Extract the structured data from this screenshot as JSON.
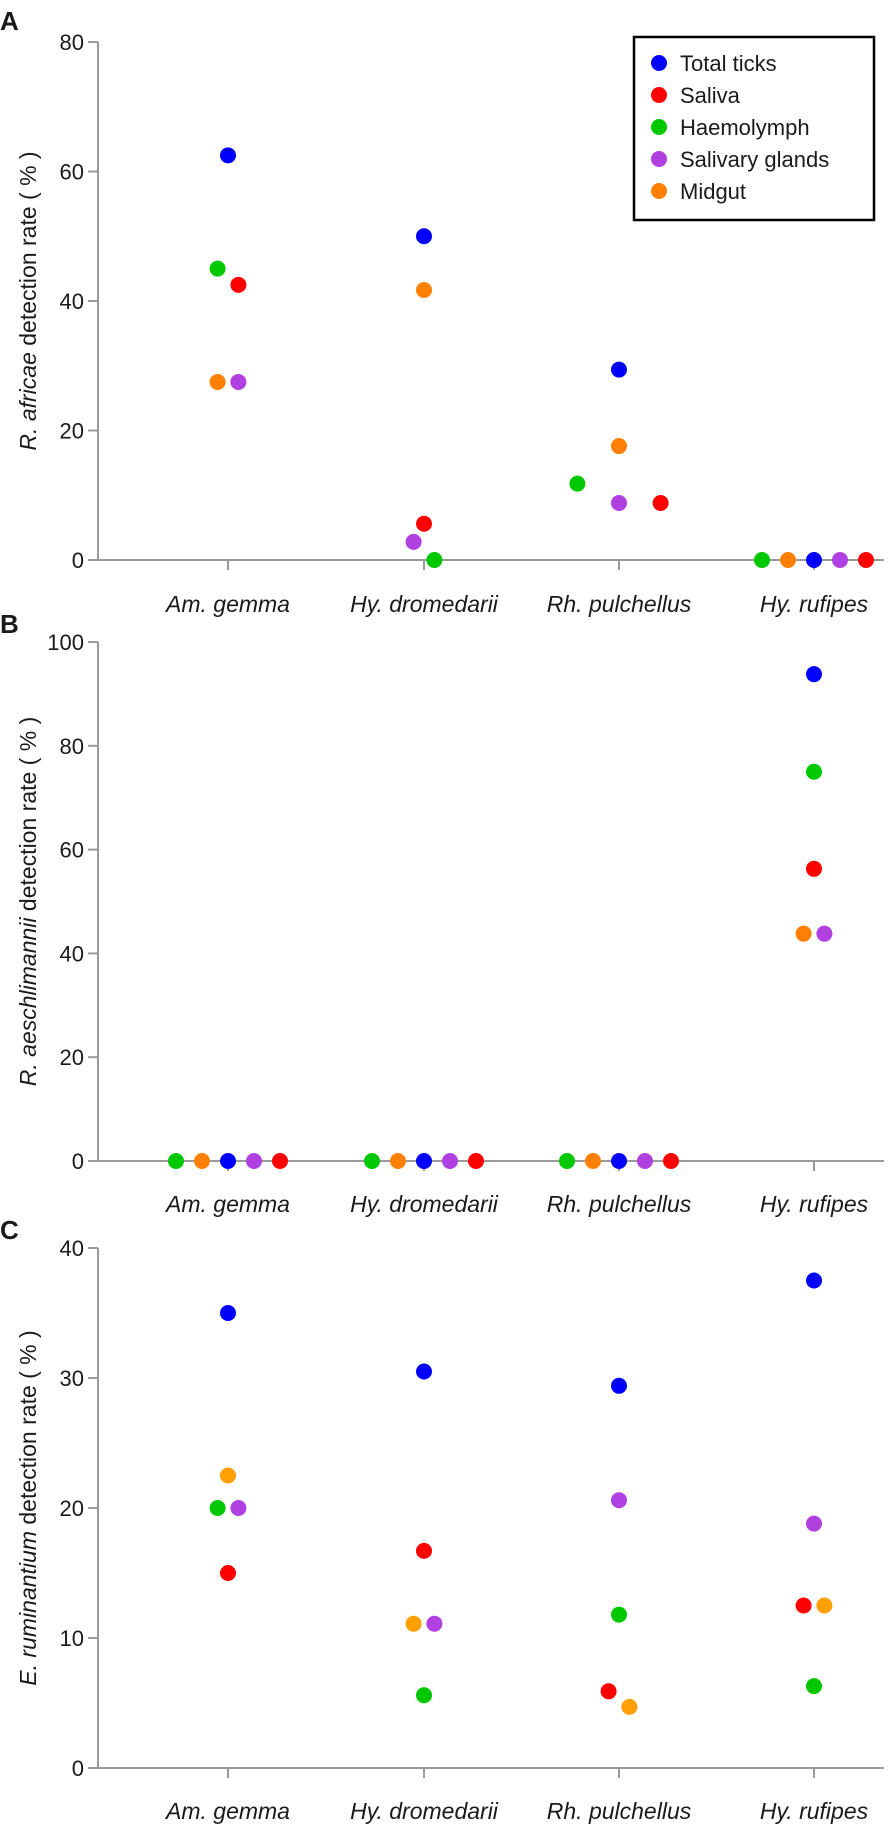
{
  "chart_data": [
    {
      "type": "scatter",
      "panel": "A",
      "ylabel_italic": "R. africae",
      "ylabel_rest": " detection rate ( % )",
      "ylim": [
        0,
        80
      ],
      "yticks": [
        "0",
        "20",
        "40",
        "60",
        "80"
      ],
      "categories": [
        "Am. gemma",
        "Hy. dromedarii",
        "Rh. pulchellus",
        "Hy. rufipes"
      ],
      "legend": {
        "position": "top-right",
        "entries": [
          "Total ticks",
          "Saliva",
          "Haemolymph",
          "Salivary glands",
          "Midgut"
        ]
      },
      "series": [
        {
          "name": "Total ticks",
          "color": "#0000ff",
          "values": [
            62.5,
            50,
            29.4,
            0
          ],
          "offsets": [
            0,
            0,
            0,
            0
          ]
        },
        {
          "name": "Saliva",
          "color": "#ff0000",
          "values": [
            42.5,
            5.6,
            8.8,
            0
          ],
          "offsets": [
            1,
            0,
            4,
            5
          ]
        },
        {
          "name": "Haemolymph",
          "color": "#00c800",
          "values": [
            45,
            0,
            11.8,
            0
          ],
          "offsets": [
            -1,
            1,
            -4,
            -5
          ]
        },
        {
          "name": "Salivary glands",
          "color": "#b040e0",
          "values": [
            27.5,
            2.8,
            8.8,
            0
          ],
          "offsets": [
            1,
            -1,
            0,
            2.5
          ]
        },
        {
          "name": "Midgut",
          "color": "#ff8000",
          "values": [
            27.5,
            41.7,
            17.6,
            0
          ],
          "offsets": [
            -1,
            0,
            0,
            -2.5
          ]
        }
      ]
    },
    {
      "type": "scatter",
      "panel": "B",
      "ylabel_italic": "R. aeschlimannii",
      "ylabel_rest": " detection rate ( % )",
      "ylim": [
        0,
        100
      ],
      "yticks": [
        "0",
        "20",
        "40",
        "60",
        "80",
        "100"
      ],
      "categories": [
        "Am. gemma",
        "Hy. dromedarii",
        "Rh. pulchellus",
        "Hy. rufipes"
      ],
      "series": [
        {
          "name": "Total ticks",
          "color": "#0000ff",
          "values": [
            0,
            0,
            0,
            93.8
          ],
          "offsets": [
            0,
            0,
            0,
            0
          ]
        },
        {
          "name": "Saliva",
          "color": "#ff0000",
          "values": [
            0,
            0,
            0,
            56.3
          ],
          "offsets": [
            5,
            5,
            5,
            0
          ]
        },
        {
          "name": "Haemolymph",
          "color": "#00c800",
          "values": [
            0,
            0,
            0,
            75
          ],
          "offsets": [
            -5,
            -5,
            -5,
            0
          ]
        },
        {
          "name": "Salivary glands",
          "color": "#b040e0",
          "values": [
            0,
            0,
            0,
            43.8
          ],
          "offsets": [
            2.5,
            2.5,
            2.5,
            1
          ]
        },
        {
          "name": "Midgut",
          "color": "#ff8000",
          "values": [
            0,
            0,
            0,
            43.8
          ],
          "offsets": [
            -2.5,
            -2.5,
            -2.5,
            -1
          ]
        }
      ]
    },
    {
      "type": "scatter",
      "panel": "C",
      "ylabel_italic": "E. ruminantium",
      "ylabel_rest": " detection rate ( % )",
      "ylim": [
        0,
        40
      ],
      "yticks": [
        "0",
        "10",
        "20",
        "30",
        "40"
      ],
      "categories": [
        "Am. gemma",
        "Hy. dromedarii",
        "Rh. pulchellus",
        "Hy. rufipes"
      ],
      "series": [
        {
          "name": "Total ticks",
          "color": "#0000ff",
          "values": [
            35,
            30.5,
            29.4,
            37.5
          ],
          "offsets": [
            0,
            0,
            0,
            0
          ]
        },
        {
          "name": "Saliva",
          "color": "#ff0000",
          "values": [
            15,
            16.7,
            5.9,
            12.5
          ],
          "offsets": [
            0,
            0,
            -1,
            -1
          ]
        },
        {
          "name": "Haemolymph",
          "color": "#00c800",
          "values": [
            20,
            5.6,
            11.8,
            6.3
          ],
          "offsets": [
            -1,
            0,
            0,
            0
          ]
        },
        {
          "name": "Salivary glands",
          "color": "#b040e0",
          "values": [
            20,
            11.1,
            20.6,
            18.8
          ],
          "offsets": [
            1,
            1,
            0,
            0
          ]
        },
        {
          "name": "Midgut",
          "color": "#ffa000",
          "values": [
            22.5,
            11.1,
            4.7,
            12.5
          ],
          "offsets": [
            0,
            -1,
            1,
            1
          ]
        }
      ]
    }
  ]
}
